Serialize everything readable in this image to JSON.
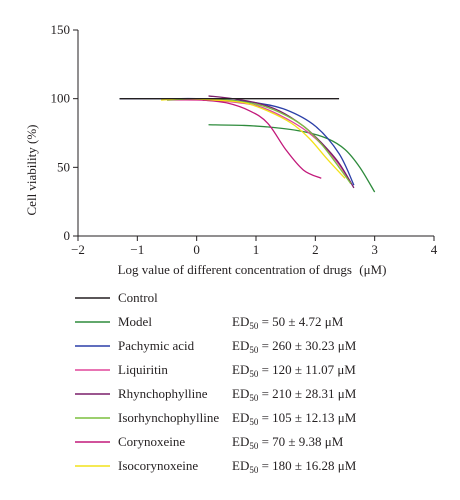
{
  "chart_data": {
    "type": "line",
    "title": "",
    "xlabel": "Log value of different concentration of drugs",
    "xlabel_unit": "(μM)",
    "ylabel": "Cell viability (%)",
    "xlim": [
      -2,
      4
    ],
    "ylim": [
      0,
      150
    ],
    "xticks": [
      "-2",
      "-1",
      "0",
      "1",
      "2",
      "3",
      "4"
    ],
    "yticks": [
      "0",
      "50",
      "100",
      "150"
    ],
    "grid": false,
    "legend_position": "bottom",
    "ed_prefix": "ED",
    "ed_sub": "50",
    "series": [
      {
        "name": "Control",
        "color": "#231f20",
        "ed": "",
        "x": [
          -1.3,
          2.4
        ],
        "y": [
          100,
          100
        ]
      },
      {
        "name": "Model",
        "color": "#2e8b3c",
        "ed": " = 50 ± 4.72 μM",
        "x": [
          0.2,
          0.8,
          1.3,
          1.8,
          2.2,
          2.5,
          2.75,
          3.0
        ],
        "y": [
          81,
          80.5,
          79,
          76,
          71,
          63,
          50,
          32
        ]
      },
      {
        "name": "Pachymic acid",
        "color": "#2b3fa8",
        "ed": " = 260 ± 30.23 μM",
        "x": [
          -1.3,
          -0.8,
          -0.4,
          0.0,
          0.5,
          1.0,
          1.5,
          2.0,
          2.4,
          2.65
        ],
        "y": [
          100,
          100,
          100,
          100,
          99,
          97,
          92,
          80,
          60,
          37
        ]
      },
      {
        "name": "Liquiritin",
        "color": "#e0479a",
        "ed": " = 120 ± 11.07 μM",
        "x": [
          -0.5,
          0.0,
          0.5,
          1.0,
          1.4,
          1.8,
          2.1,
          2.4,
          2.6
        ],
        "y": [
          99,
          99,
          98,
          95,
          88,
          78,
          67,
          52,
          38
        ]
      },
      {
        "name": "Rhynchophylline",
        "color": "#7a1f6a",
        "ed": " = 210 ± 28.31 μM",
        "x": [
          0.2,
          0.6,
          1.0,
          1.4,
          1.8,
          2.1,
          2.4,
          2.65
        ],
        "y": [
          102,
          100,
          97,
          91,
          80,
          68,
          53,
          35
        ]
      },
      {
        "name": "Isorhynchophylline",
        "color": "#7cbf3f",
        "ed": " = 105 ± 12.13 μM",
        "x": [
          -0.5,
          0.0,
          0.5,
          1.0,
          1.4,
          1.8,
          2.1,
          2.4,
          2.6
        ],
        "y": [
          99,
          100,
          99,
          96,
          90,
          80,
          67,
          50,
          38
        ]
      },
      {
        "name": "Corynoxeine",
        "color": "#c2187a",
        "ed": " = 70 ± 9.38 μM",
        "x": [
          0.1,
          0.5,
          0.9,
          1.2,
          1.5,
          1.8,
          2.1
        ],
        "y": [
          99,
          97,
          91,
          82,
          63,
          48,
          42
        ]
      },
      {
        "name": "Isocorynoxeine",
        "color": "#f2e21a",
        "ed": " = 180 ± 16.28 μM",
        "x": [
          -0.6,
          -0.2,
          0.3,
          0.8,
          1.2,
          1.6,
          1.9,
          2.2,
          2.5
        ],
        "y": [
          99,
          100,
          99,
          97,
          91,
          82,
          71,
          56,
          42
        ]
      }
    ]
  }
}
